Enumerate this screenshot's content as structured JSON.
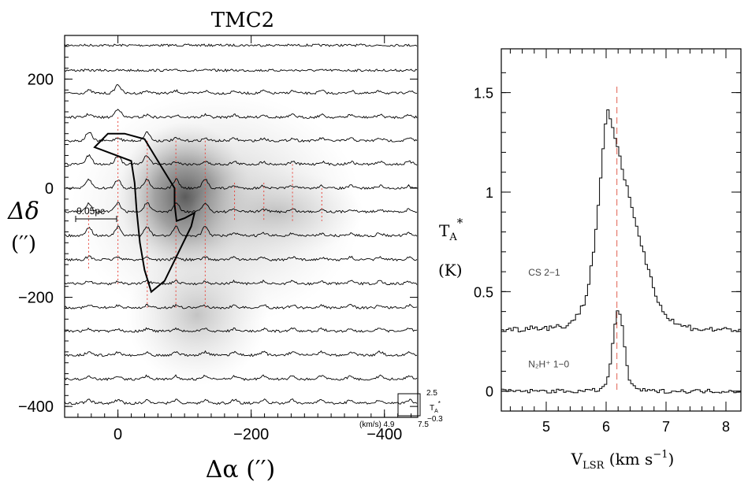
{
  "chart_data": [
    {
      "type": "spectral-map",
      "title": "TMC2",
      "xlabel": "Δα  (′′)",
      "ylabel": "Δδ",
      "ylabel_unit": "(′′)",
      "xlim": [
        80,
        -450
      ],
      "ylim": [
        -420,
        280
      ],
      "xticks": [
        0,
        -200,
        -400
      ],
      "xtick_labels": [
        "0",
        "−200",
        "−400"
      ],
      "yticks": [
        200,
        0,
        -200,
        -400
      ],
      "ytick_labels": [
        "200",
        "0",
        "−200",
        "−400"
      ],
      "scale_bar_label": "0.05pc",
      "spectrum_rows_offsets": [
        262,
        216,
        174,
        130,
        87,
        44,
        0,
        -43,
        -87,
        -131,
        -175,
        -219,
        -262,
        -306,
        -350,
        -394
      ],
      "peak_positions": {
        "offsets": [
          0,
          0,
          -44,
          44,
          -44,
          0,
          44,
          -131,
          -87,
          -44,
          0,
          44,
          -131,
          -87,
          -44,
          0,
          44,
          -131,
          -87,
          -44,
          0,
          44
        ],
        "decl": [
          174,
          130,
          87,
          87,
          44,
          44,
          44,
          0,
          0,
          0,
          0,
          0,
          -43,
          -43,
          -43,
          -43,
          -43,
          -87,
          -87,
          -87,
          -87,
          -87
        ]
      },
      "dotted_line_columns": [
        44,
        0,
        -44,
        -87,
        -131,
        -175,
        -219,
        -262,
        -306
      ],
      "contour_polygon": {
        "x": [
          -35,
          -15,
          10,
          40,
          60,
          75,
          85,
          85,
          88,
          100,
          115,
          110,
          90,
          70,
          50,
          40,
          33,
          28,
          25,
          20
        ],
        "y": [
          75,
          100,
          100,
          90,
          50,
          20,
          0,
          -30,
          -60,
          -55,
          -45,
          -70,
          -120,
          -170,
          -190,
          -150,
          -100,
          -40,
          10,
          50
        ]
      },
      "inset": {
        "velocity_range_label": "(km/s) 4.9",
        "velocity_max_label": "7.5",
        "tmax_label": "2.5",
        "tmin_label": "−0.3",
        "t_label": "T",
        "t_sub": "A",
        "t_sup": "*"
      }
    },
    {
      "type": "line",
      "xlabel": "V",
      "xlabel_sub": "LSR",
      "xlabel_tail": " (km s",
      "xlabel_sup": "−1",
      "xlabel_close": ")",
      "ylabel": "T",
      "ylabel_sub": "A",
      "ylabel_sup": "*",
      "ylabel_unit": "(K)",
      "xlim": [
        4.25,
        8.25
      ],
      "ylim": [
        -0.1,
        1.72
      ],
      "xticks": [
        5,
        6,
        7,
        8
      ],
      "xtick_labels": [
        "5",
        "6",
        "7",
        "8"
      ],
      "yticks": [
        0,
        0.5,
        1,
        1.5
      ],
      "ytick_labels": [
        "0",
        "0.5",
        "1",
        "1.5"
      ],
      "vline_x": 6.18,
      "series": [
        {
          "name": "CS 2−1",
          "x": [
            4.3,
            4.5,
            4.7,
            4.9,
            5.1,
            5.3,
            5.45,
            5.6,
            5.7,
            5.8,
            5.9,
            5.95,
            6.0,
            6.05,
            6.1,
            6.2,
            6.3,
            6.4,
            6.5,
            6.6,
            6.7,
            6.8,
            6.9,
            7.0,
            7.2,
            7.4,
            7.6,
            7.8,
            8.0,
            8.25
          ],
          "y": [
            0.31,
            0.31,
            0.32,
            0.32,
            0.32,
            0.33,
            0.36,
            0.43,
            0.55,
            0.78,
            1.1,
            1.3,
            1.42,
            1.38,
            1.3,
            1.18,
            1.05,
            0.94,
            0.82,
            0.7,
            0.6,
            0.5,
            0.42,
            0.37,
            0.33,
            0.32,
            0.31,
            0.31,
            0.31,
            0.31
          ]
        },
        {
          "name": "N₂H⁺ 1−0",
          "x": [
            4.3,
            4.6,
            5.0,
            5.4,
            5.7,
            5.9,
            6.0,
            6.05,
            6.1,
            6.15,
            6.2,
            6.25,
            6.3,
            6.35,
            6.4,
            6.5,
            6.7,
            7.0,
            7.4,
            7.8,
            8.25
          ],
          "y": [
            0.0,
            0.0,
            0.0,
            0.0,
            0.0,
            0.01,
            0.05,
            0.13,
            0.27,
            0.39,
            0.4,
            0.33,
            0.2,
            0.08,
            0.03,
            0.01,
            0.0,
            0.0,
            0.0,
            0.0,
            0.0
          ]
        }
      ],
      "series_labels": [
        {
          "text": "CS 2−1",
          "x": 4.7,
          "y": 0.58
        },
        {
          "text": "N₂H⁺ 1−0",
          "x": 4.7,
          "y": 0.12
        }
      ]
    }
  ]
}
